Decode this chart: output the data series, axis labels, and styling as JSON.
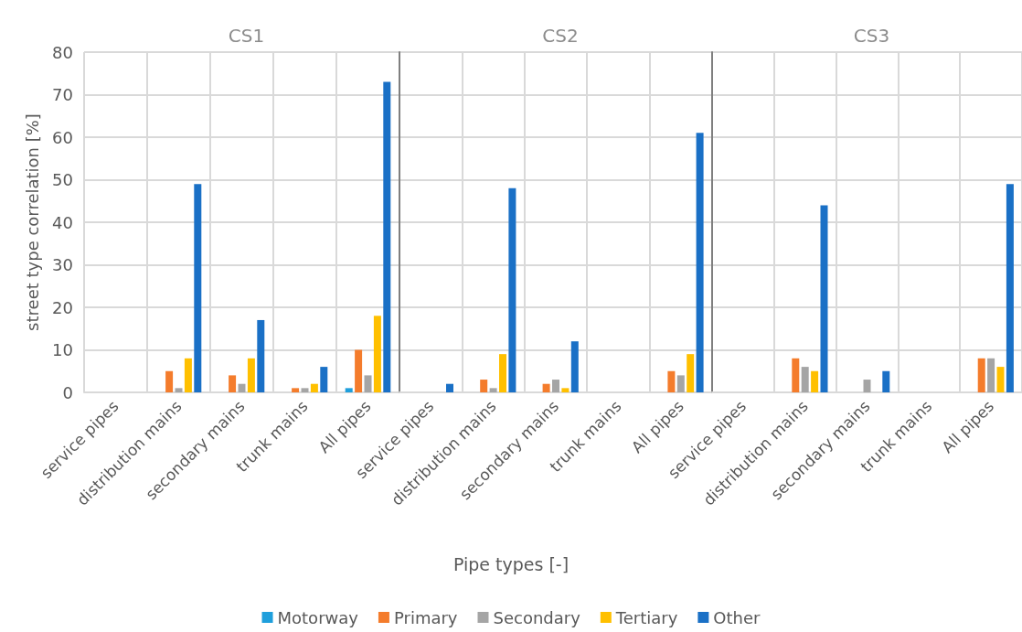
{
  "chart_data": [
    {
      "type": "bar",
      "title": "CS1",
      "ylabel": "street type correlation [%]",
      "categories": [
        "service pipes",
        "distribution mains",
        "secondary mains",
        "trunk mains",
        "All pipes"
      ],
      "ylim": [
        0,
        80
      ],
      "yticks": [
        0,
        10,
        20,
        30,
        40,
        50,
        60,
        70,
        80
      ],
      "grid": true,
      "legend": "bottom",
      "series": [
        {
          "name": "Motorway",
          "color": "#1f9fdc",
          "values": [
            0,
            0,
            0,
            0,
            1
          ]
        },
        {
          "name": "Primary",
          "color": "#f47c2c",
          "values": [
            0,
            5,
            4,
            1,
            10
          ]
        },
        {
          "name": "Secondary",
          "color": "#a5a5a5",
          "values": [
            0,
            1,
            2,
            1,
            4
          ]
        },
        {
          "name": "Tertiary",
          "color": "#ffc000",
          "values": [
            0,
            8,
            8,
            2,
            18
          ]
        },
        {
          "name": "Other",
          "color": "#1a70c6",
          "values": [
            0,
            49,
            17,
            6,
            73
          ]
        }
      ]
    },
    {
      "type": "bar",
      "title": "CS2",
      "xlabel": "Pipe types [-]",
      "categories": [
        "service pipes",
        "distribution mains",
        "secondary mains",
        "trunk mains",
        "All pipes"
      ],
      "ylim": [
        0,
        80
      ],
      "yticks": [
        0,
        10,
        20,
        30,
        40,
        50,
        60,
        70,
        80
      ],
      "grid": true,
      "legend": false,
      "tick_labels": "x",
      "series": [
        {
          "color": "#1f9fdc",
          "values": [
            0,
            0,
            0,
            0,
            0
          ]
        },
        {
          "color": "#f47c2c",
          "values": [
            0,
            3,
            2,
            0,
            5
          ]
        },
        {
          "color": "#a5a5a5",
          "values": [
            0,
            1,
            3,
            0,
            4
          ]
        },
        {
          "color": "#ffc000",
          "values": [
            0,
            9,
            1,
            0,
            9
          ]
        },
        {
          "color": "#1a70c6",
          "values": [
            2,
            48,
            12,
            0,
            61
          ]
        }
      ]
    },
    {
      "type": "bar",
      "title": "CS3",
      "categories": [
        "service pipes",
        "distribution mains",
        "secondary mains",
        "trunk mains",
        "All pipes"
      ],
      "ylim": [
        0,
        80
      ],
      "yticks": [
        0,
        10,
        20,
        30,
        40,
        50,
        60,
        70,
        80
      ],
      "grid": true,
      "legend": false,
      "tick_labels": "x",
      "series": [
        {
          "color": "#1f9fdc",
          "values": [
            0,
            0,
            0,
            0,
            0
          ]
        },
        {
          "color": "#f47c2c",
          "values": [
            0,
            8,
            0,
            0,
            8
          ]
        },
        {
          "color": "#a5a5a5",
          "values": [
            0,
            6,
            3,
            0,
            8
          ]
        },
        {
          "color": "#ffc000",
          "values": [
            0,
            5,
            0,
            0,
            6
          ]
        },
        {
          "color": "#1a70c6",
          "values": [
            0,
            44,
            5,
            0,
            49
          ]
        }
      ]
    }
  ]
}
